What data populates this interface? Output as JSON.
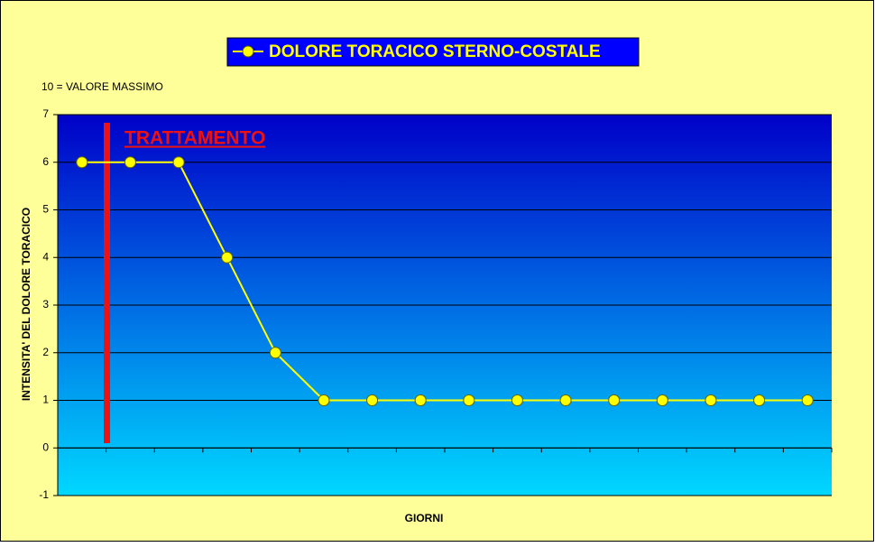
{
  "chart_data": {
    "type": "line",
    "subtitle": "10 = VALORE MASSIMO",
    "annotation": "TRATTAMENTO",
    "x_label": "GIORNI",
    "y_label": "INTENSITA' DEL DOLORE TORACICO",
    "categories": [
      null,
      null,
      null,
      null,
      null,
      null,
      null,
      null,
      null,
      null,
      null,
      null,
      null,
      null,
      null,
      null
    ],
    "series": [
      {
        "name": "DOLORE TORACICO STERNO-COSTALE",
        "color": "#ffff00",
        "values": [
          6,
          6,
          6,
          4,
          2,
          1,
          1,
          1,
          1,
          1,
          1,
          1,
          1,
          1,
          1,
          1
        ]
      }
    ],
    "ylim": [
      -1,
      7
    ],
    "yticks": [
      -1,
      0,
      1,
      2,
      3,
      4,
      5,
      6,
      7
    ],
    "grid": true
  }
}
